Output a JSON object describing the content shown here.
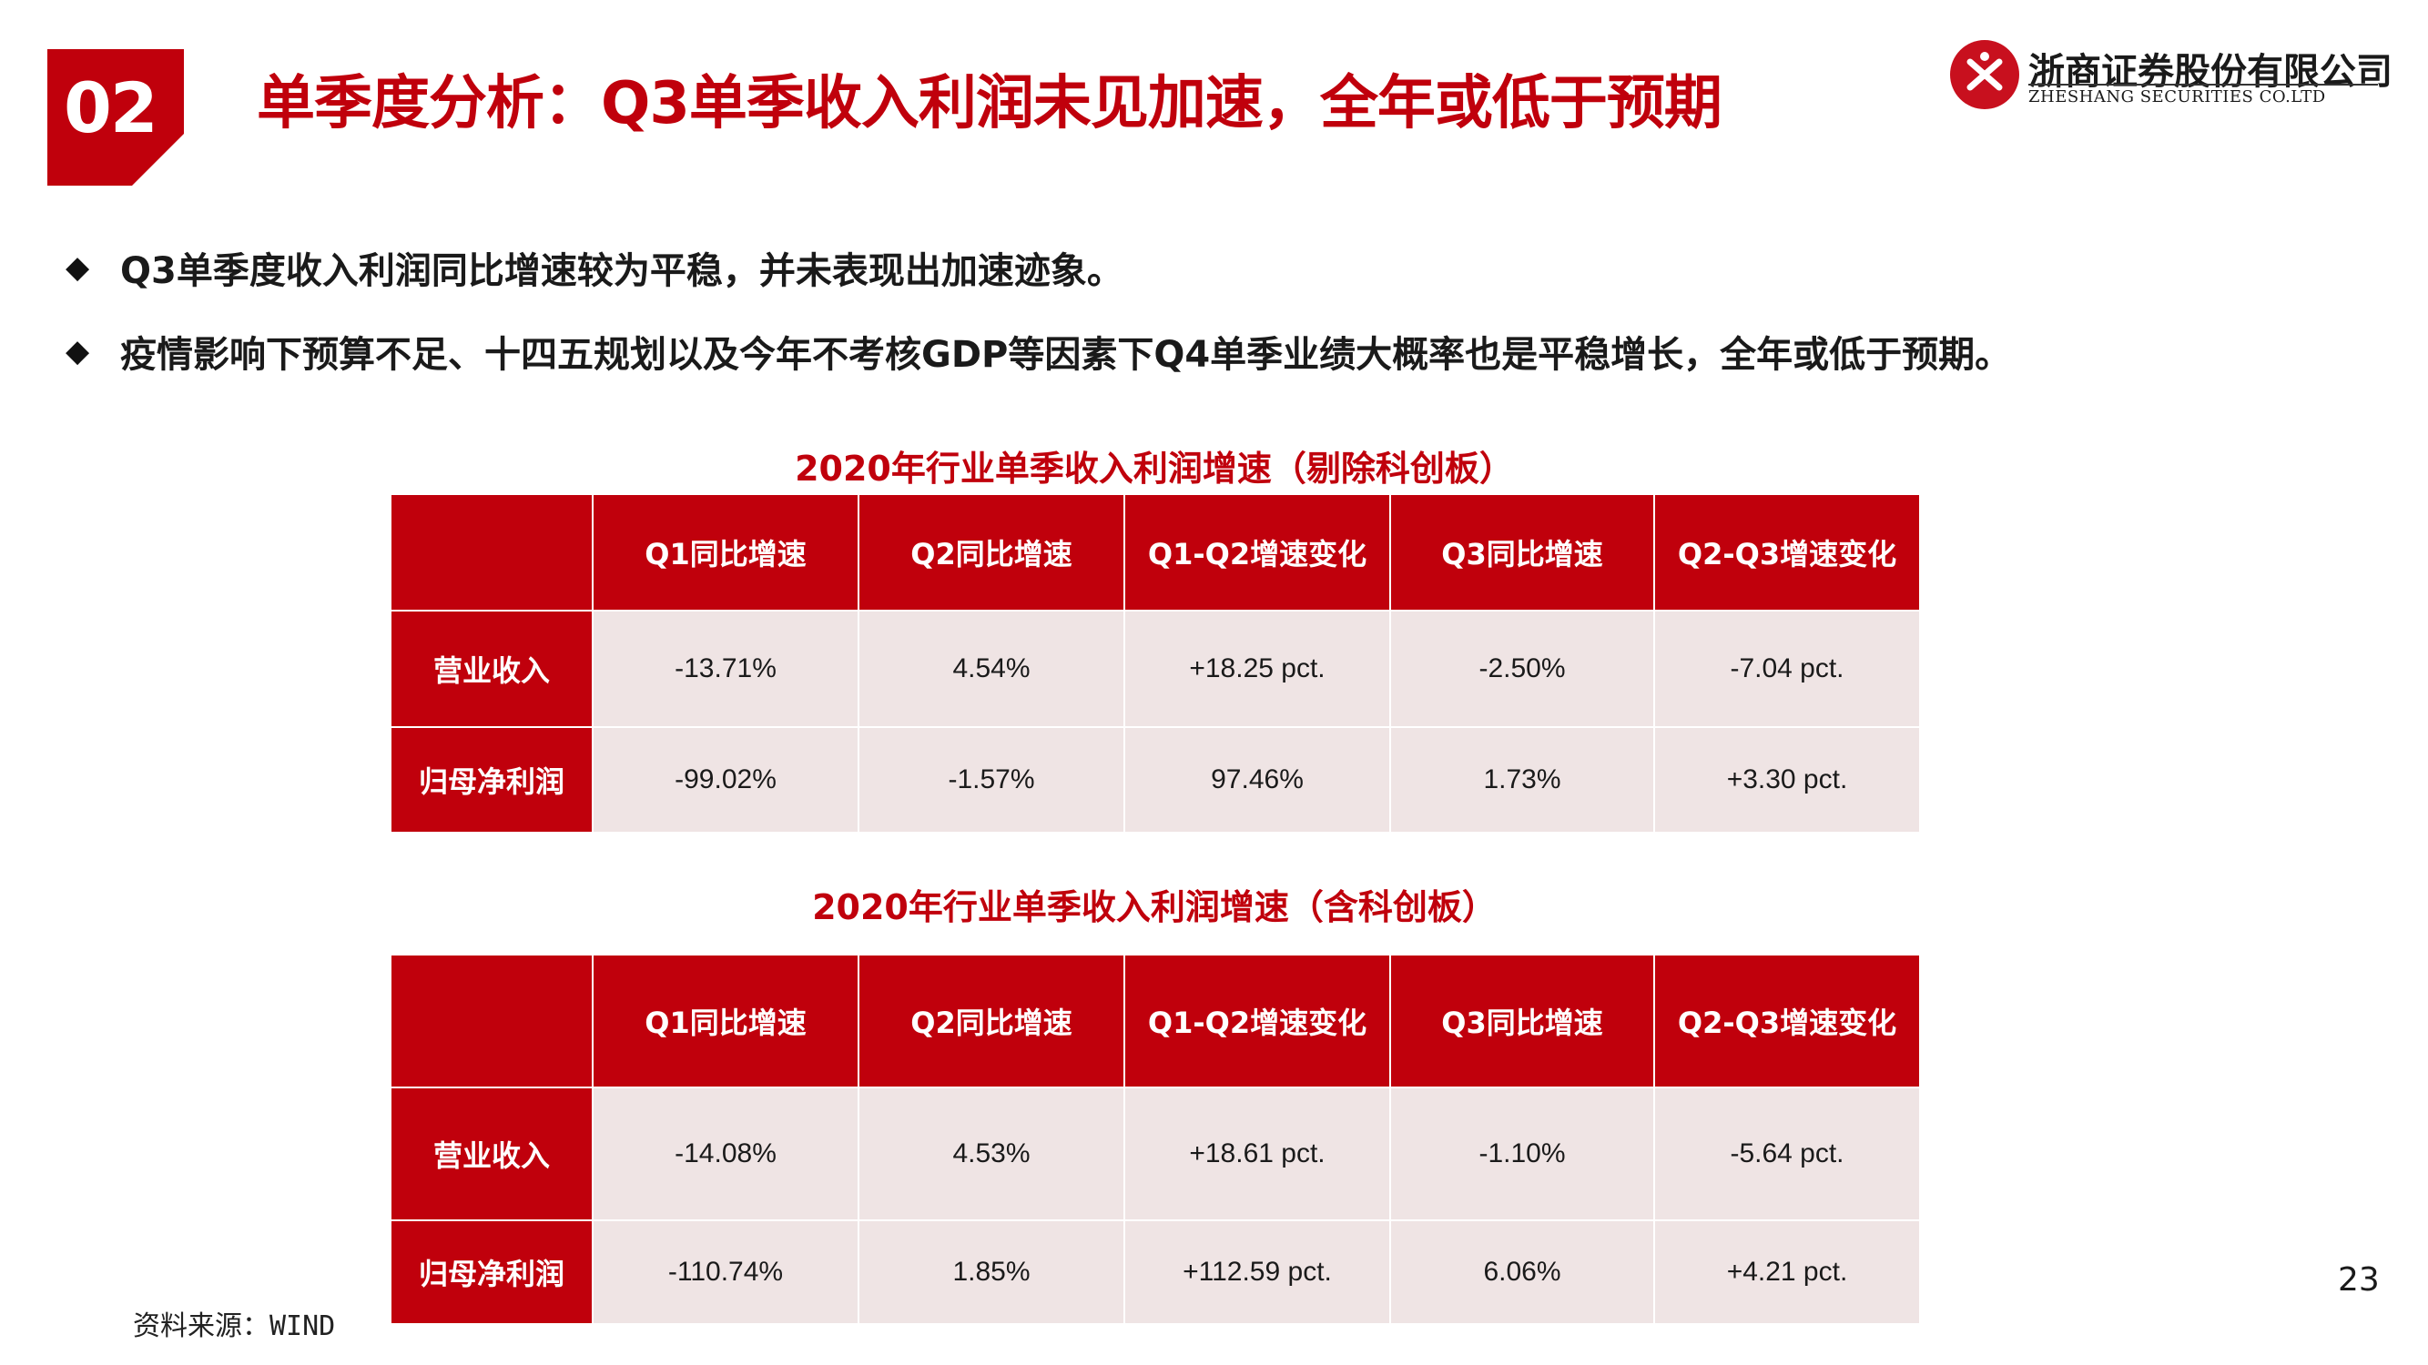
{
  "header": {
    "section_number": "02",
    "title": "单季度分析：Q3单季收入利润未见加速，全年或低于预期",
    "logo_cn": "浙商证券股份有限公司",
    "logo_en": "ZHESHANG SECURITIES CO.LTD",
    "brand_color": "#c0000c"
  },
  "bullets": [
    {
      "icon": "diamond-bullet",
      "text": "Q3单季度收入利润同比增速较为平稳，并未表现出加速迹象。"
    },
    {
      "icon": "diamond-bullet",
      "text": "疫情影响下预算不足、十四五规划以及今年不考核GDP等因素下Q4单季业绩大概率也是平稳增长，全年或低于预期。"
    }
  ],
  "tables": [
    {
      "title": "2020年行业单季收入利润增速（剔除科创板）",
      "columns": [
        "",
        "Q1同比增速",
        "Q2同比增速",
        "Q1-Q2增速变化",
        "Q3同比增速",
        "Q2-Q3增速变化"
      ],
      "rows": [
        {
          "label": "营业收入",
          "cells": [
            "-13.71%",
            "4.54%",
            "+18.25 pct.",
            "-2.50%",
            "-7.04 pct."
          ]
        },
        {
          "label": "归母净利润",
          "cells": [
            "-99.02%",
            "-1.57%",
            "97.46%",
            "1.73%",
            "+3.30 pct."
          ]
        }
      ]
    },
    {
      "title": "2020年行业单季收入利润增速（含科创板）",
      "columns": [
        "",
        "Q1同比增速",
        "Q2同比增速",
        "Q1-Q2增速变化",
        "Q3同比增速",
        "Q2-Q3增速变化"
      ],
      "rows": [
        {
          "label": "营业收入",
          "cells": [
            "-14.08%",
            "4.53%",
            "+18.61 pct.",
            "-1.10%",
            "-5.64 pct."
          ]
        },
        {
          "label": "归母净利润",
          "cells": [
            "-110.74%",
            "1.85%",
            "+112.59 pct.",
            "6.06%",
            "+4.21 pct."
          ]
        }
      ]
    }
  ],
  "footer": {
    "source": "资料来源：WIND",
    "page_number": "23"
  }
}
